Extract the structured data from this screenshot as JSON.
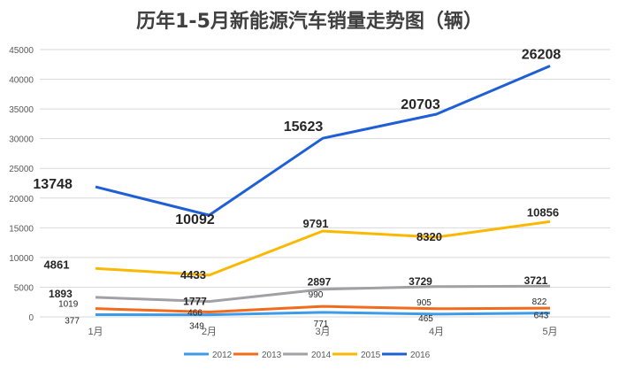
{
  "chart_data": {
    "type": "line",
    "stacked": true,
    "title": "历年1-5月新能源汽车销量走势图（辆）",
    "categories": [
      "1月",
      "2月",
      "3月",
      "4月",
      "5月"
    ],
    "ylim": [
      0,
      45000
    ],
    "yticks": [
      0,
      5000,
      10000,
      15000,
      20000,
      25000,
      30000,
      35000,
      40000,
      45000
    ],
    "grid": true,
    "legend": "bottom",
    "series": [
      {
        "name": "2012",
        "color": "#3d9be9",
        "values": [
          377,
          349,
          771,
          465,
          643
        ]
      },
      {
        "name": "2013",
        "color": "#f26b1d",
        "values": [
          1019,
          466,
          990,
          905,
          822
        ]
      },
      {
        "name": "2014",
        "color": "#a0a0a5",
        "values": [
          1893,
          1777,
          2897,
          3729,
          3721
        ]
      },
      {
        "name": "2015",
        "color": "#fbb800",
        "values": [
          4861,
          4433,
          9791,
          8320,
          10856
        ]
      },
      {
        "name": "2016",
        "color": "#1f5fd6",
        "values": [
          13748,
          10092,
          15623,
          20703,
          26208
        ]
      }
    ]
  }
}
